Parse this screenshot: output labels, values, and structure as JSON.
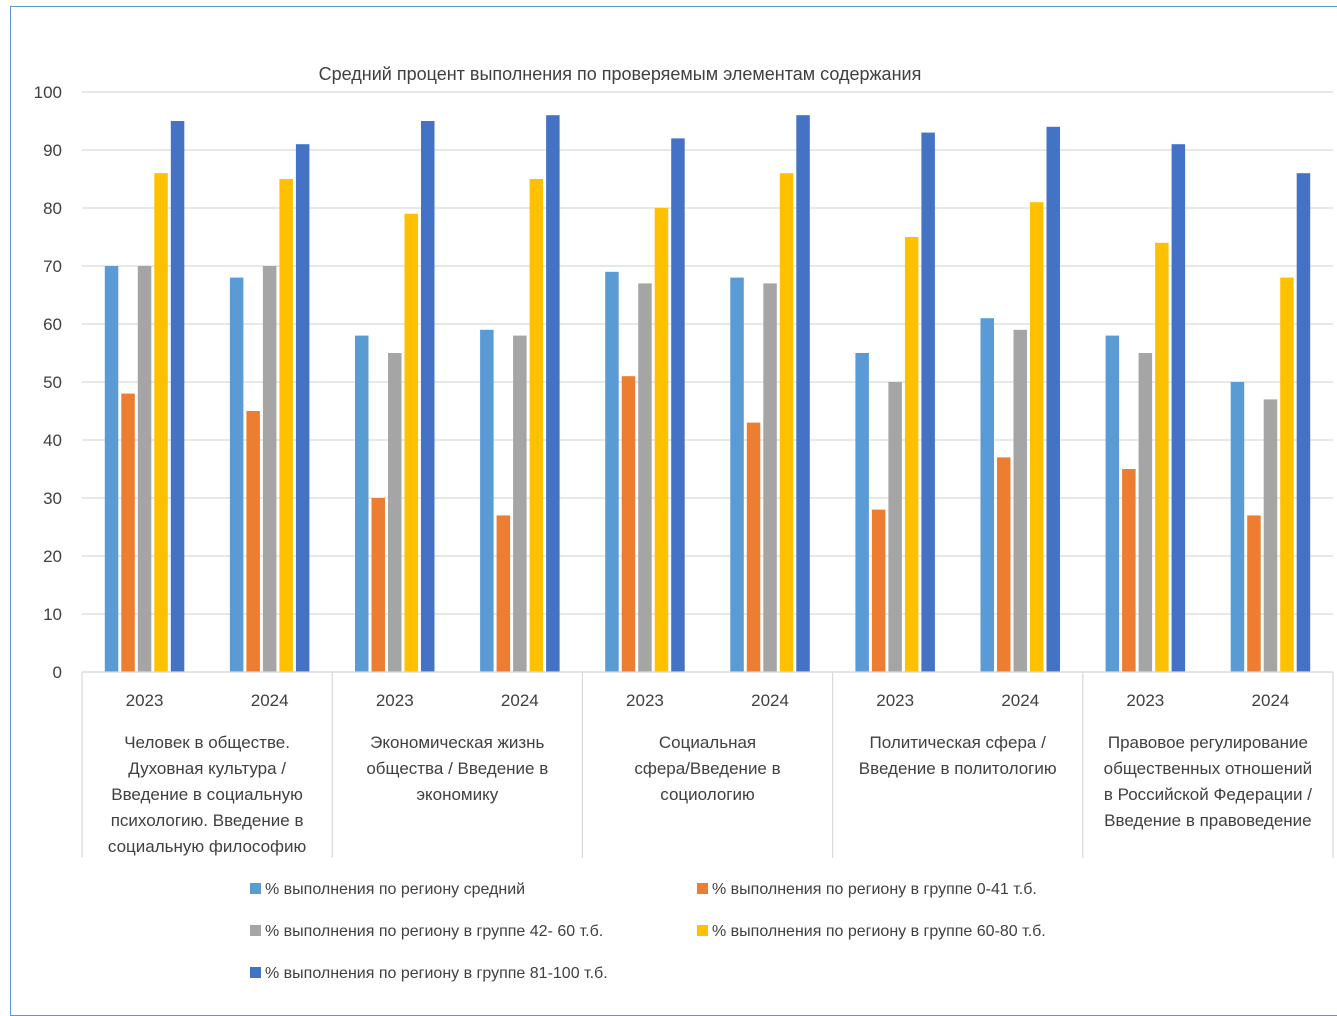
{
  "chart_data": {
    "type": "bar",
    "title": "Средний процент выполнения по проверяемым элементам содержания",
    "ylim": [
      0,
      100
    ],
    "yticks": [
      0,
      10,
      20,
      30,
      40,
      50,
      60,
      70,
      80,
      90,
      100
    ],
    "grid": true,
    "legend_position": "bottom",
    "groups": [
      {
        "label_lines": [
          "Человек в обществе.",
          "Духовная культура /",
          "Введение в социальную",
          "психологию. Введение в",
          "социальную философию"
        ],
        "years": [
          "2023",
          "2024"
        ]
      },
      {
        "label_lines": [
          "Экономическая жизнь",
          "общества / Введение в",
          "экономику"
        ],
        "years": [
          "2023",
          "2024"
        ]
      },
      {
        "label_lines": [
          "Социальная",
          "сфера/Введение в",
          "социологию"
        ],
        "years": [
          "2023",
          "2024"
        ]
      },
      {
        "label_lines": [
          "Политическая сфера /",
          "Введение в политологию"
        ],
        "years": [
          "2023",
          "2024"
        ]
      },
      {
        "label_lines": [
          "Правовое регулирование",
          "общественных отношений",
          "в Российской Федерации /",
          "Введение в правоведение"
        ],
        "years": [
          "2023",
          "2024"
        ]
      }
    ],
    "series": [
      {
        "name": "% выполнения по региону средний",
        "color": "#5b9bd5",
        "values": [
          70,
          68,
          58,
          59,
          69,
          68,
          55,
          61,
          58,
          50
        ]
      },
      {
        "name": "% выполнения по региону в группе 0-41 т.б.",
        "color": "#ed7d31",
        "values": [
          48,
          45,
          30,
          27,
          51,
          43,
          28,
          37,
          35,
          27
        ]
      },
      {
        "name": "% выполнения по региону в группе 42- 60 т.б.",
        "color": "#a5a5a5",
        "values": [
          70,
          70,
          55,
          58,
          67,
          67,
          50,
          59,
          55,
          47
        ]
      },
      {
        "name": "% выполнения по региону в группе 60-80 т.б.",
        "color": "#ffc000",
        "values": [
          86,
          85,
          79,
          85,
          80,
          86,
          75,
          81,
          74,
          68
        ]
      },
      {
        "name": "% выполнения по региону в группе 81-100 т.б.",
        "color": "#4472c4",
        "values": [
          95,
          91,
          95,
          96,
          92,
          96,
          93,
          94,
          91,
          86
        ]
      }
    ]
  }
}
